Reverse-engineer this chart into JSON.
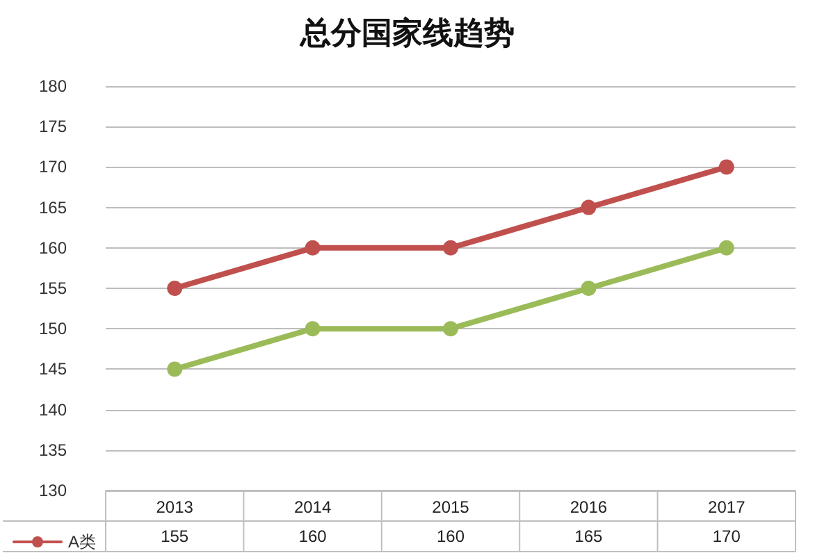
{
  "chart_data": {
    "type": "line",
    "title": "总分国家线趋势",
    "categories": [
      "2013",
      "2014",
      "2015",
      "2016",
      "2017"
    ],
    "series": [
      {
        "name": "A类",
        "color": "#c0504d",
        "values": [
          155,
          160,
          160,
          165,
          170
        ],
        "value_labels": [
          "155",
          "160",
          "160",
          "165",
          "170"
        ]
      },
      {
        "color": "#9bbb59",
        "values": [
          145,
          150,
          150,
          155,
          160
        ]
      }
    ],
    "ylim": [
      130,
      180
    ],
    "yticks": [
      130,
      135,
      140,
      145,
      150,
      155,
      160,
      165,
      170,
      175,
      180
    ],
    "grid": "y",
    "legend": "bottom",
    "marker": "circle",
    "line_style": "solid"
  }
}
